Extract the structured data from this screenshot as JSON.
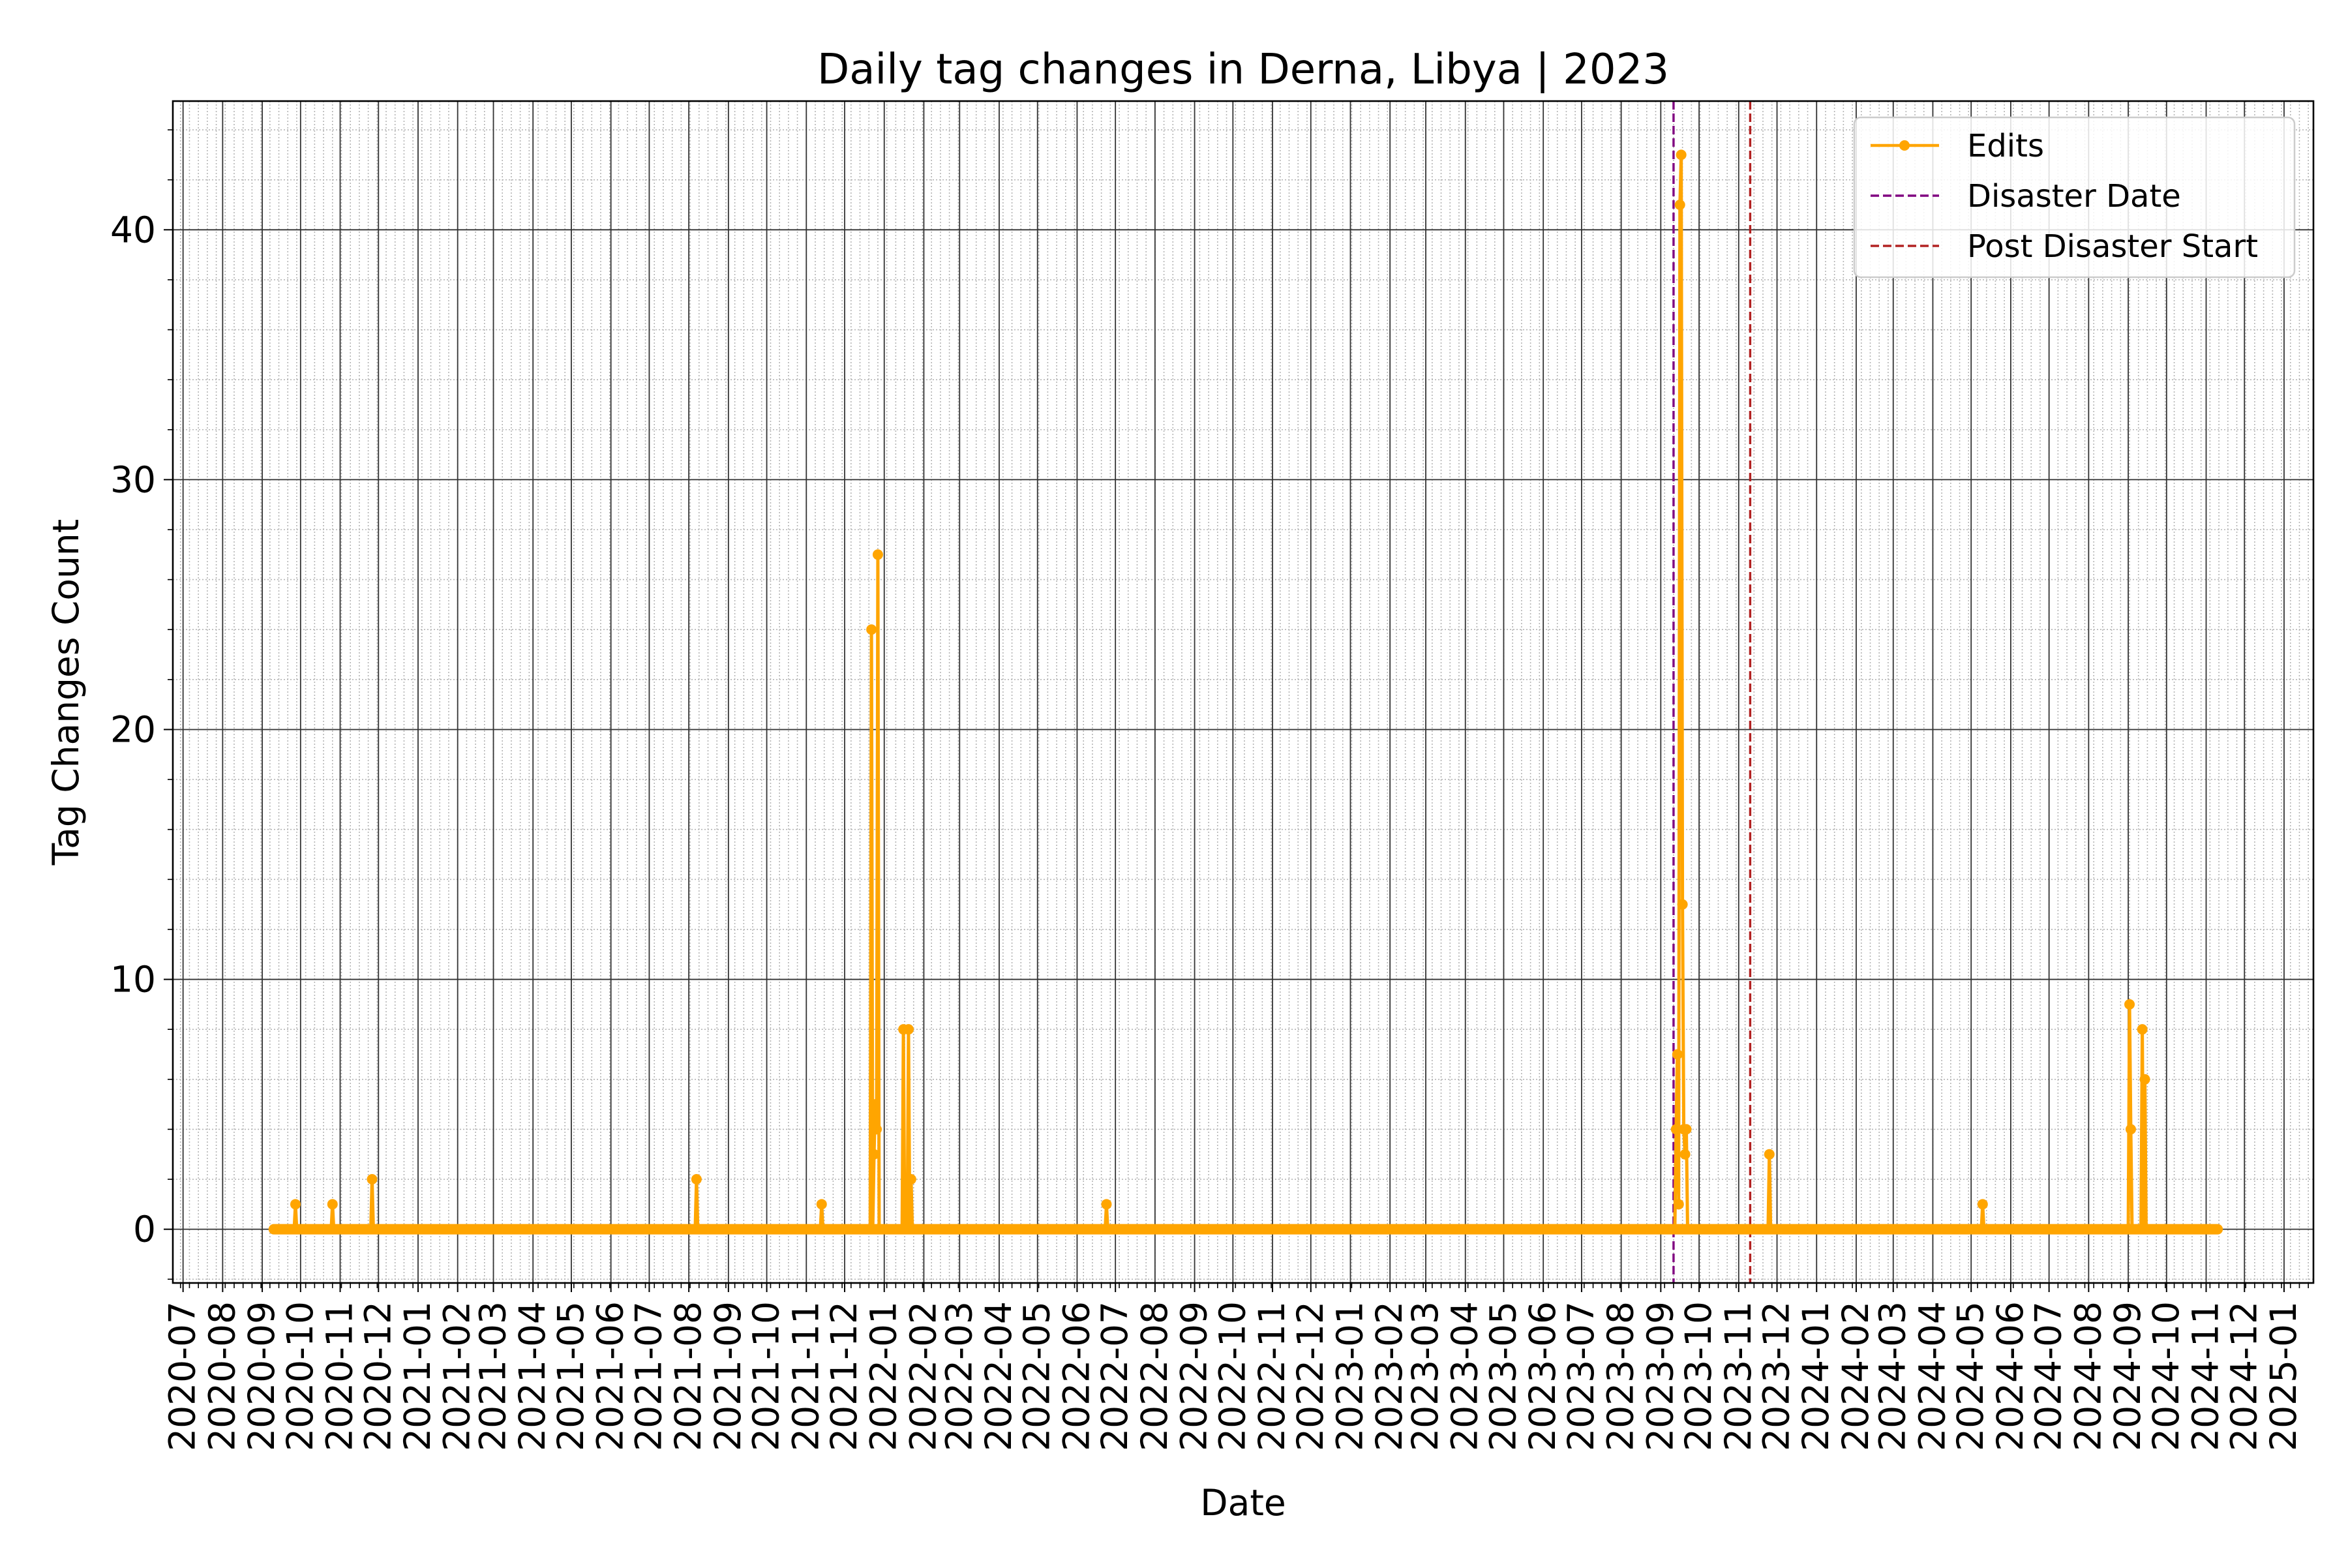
{
  "chart_data": {
    "type": "line",
    "title": "Daily tag changes in Derna, Libya | 2023",
    "xlabel": "Date",
    "ylabel": "Tag Changes Count",
    "xlim": [
      "2020-06-23",
      "2025-01-24"
    ],
    "ylim": [
      -2.15,
      45.15
    ],
    "y_ticks": [
      0,
      10,
      20,
      30,
      40
    ],
    "x_ticks": [
      "2020-07",
      "2020-08",
      "2020-09",
      "2020-10",
      "2020-11",
      "2020-12",
      "2021-01",
      "2021-02",
      "2021-03",
      "2021-04",
      "2021-05",
      "2021-06",
      "2021-07",
      "2021-08",
      "2021-09",
      "2021-10",
      "2021-11",
      "2021-12",
      "2022-01",
      "2022-02",
      "2022-03",
      "2022-04",
      "2022-05",
      "2022-06",
      "2022-07",
      "2022-08",
      "2022-09",
      "2022-10",
      "2022-11",
      "2022-12",
      "2023-01",
      "2023-02",
      "2023-03",
      "2023-04",
      "2023-05",
      "2023-06",
      "2023-07",
      "2023-08",
      "2023-09",
      "2023-10",
      "2023-11",
      "2023-12",
      "2024-01",
      "2024-02",
      "2024-03",
      "2024-04",
      "2024-05",
      "2024-06",
      "2024-07",
      "2024-08",
      "2024-09",
      "2024-10",
      "2024-11",
      "2024-12",
      "2025-01"
    ],
    "grid": true,
    "legend_position": "top-right",
    "series": [
      {
        "name": "Edits",
        "color": "#FFA500",
        "range": [
          "2020-09-10",
          "2024-11-10"
        ],
        "baseline": 0,
        "points": [
          [
            "2020-09-27",
            1
          ],
          [
            "2020-10-26",
            1
          ],
          [
            "2020-11-26",
            2
          ],
          [
            "2021-08-07",
            2
          ],
          [
            "2021-11-13",
            1
          ],
          [
            "2021-12-22",
            24
          ],
          [
            "2021-12-24",
            3
          ],
          [
            "2021-12-25",
            5
          ],
          [
            "2021-12-26",
            4
          ],
          [
            "2021-12-27",
            27
          ],
          [
            "2022-01-16",
            8
          ],
          [
            "2022-01-20",
            8
          ],
          [
            "2022-01-22",
            2
          ],
          [
            "2022-06-24",
            1
          ],
          [
            "2023-09-13",
            4
          ],
          [
            "2023-09-14",
            7
          ],
          [
            "2023-09-15",
            1
          ],
          [
            "2023-09-16",
            41
          ],
          [
            "2023-09-17",
            43
          ],
          [
            "2023-09-18",
            13
          ],
          [
            "2023-09-19",
            4
          ],
          [
            "2023-09-20",
            3
          ],
          [
            "2023-09-21",
            4
          ],
          [
            "2023-11-25",
            3
          ],
          [
            "2024-05-10",
            1
          ],
          [
            "2024-09-02",
            9
          ],
          [
            "2024-09-03",
            4
          ],
          [
            "2024-09-12",
            8
          ],
          [
            "2024-09-14",
            6
          ]
        ]
      }
    ],
    "reference_lines": [
      {
        "name": "Disaster Date",
        "date": "2023-09-11",
        "color": "#800080"
      },
      {
        "name": "Post Disaster Start",
        "date": "2023-11-10",
        "color": "#B22222"
      }
    ]
  }
}
